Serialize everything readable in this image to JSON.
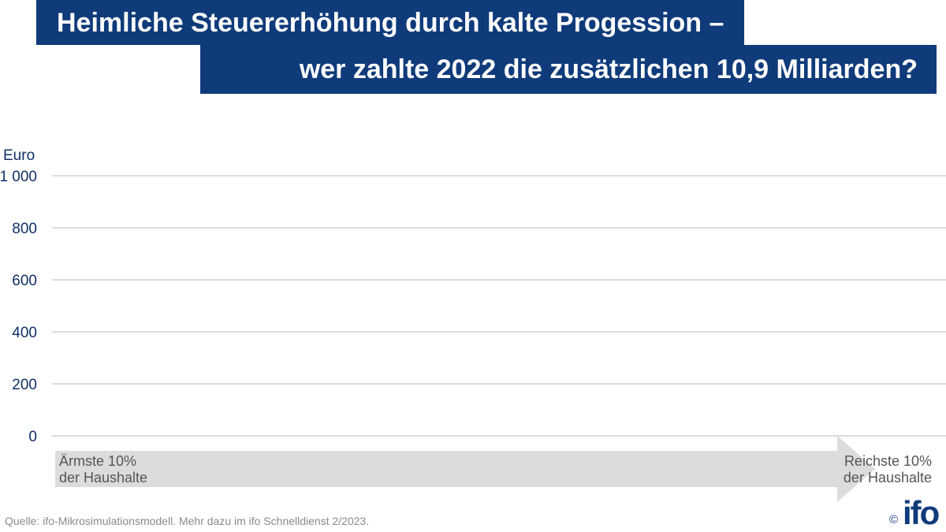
{
  "header": {
    "title_line1": "Heimliche Steuererhöhung durch kalte Progession –",
    "title_line2": "wer zahlte 2022 die zusätzlichen 10,9 Milliarden?"
  },
  "chart_data": {
    "type": "bar",
    "ylabel": "Euro",
    "ylim": [
      0,
      1000
    ],
    "yticks": [
      0,
      200,
      400,
      600,
      800,
      1000
    ],
    "ytick_labels": [
      "0",
      "200",
      "400",
      "600",
      "800",
      "1 000"
    ],
    "categories": [],
    "values": [],
    "x_axis_left_label": "Ärmste 10%\nder Haushalte",
    "x_axis_right_label": "Reichste 10%\nder Haushalte",
    "grid": true,
    "colors": {
      "grid": "#c8c8c8",
      "arrow": "#dcdcdc",
      "text": "#0f3066",
      "brand": "#0f3b7a"
    }
  },
  "footer": {
    "source": "Quelle: ifo-Mikrosimulationsmodell. Mehr dazu im ifo Schnelldienst 2/2023.",
    "copyright": "©",
    "logo": "ifo"
  }
}
